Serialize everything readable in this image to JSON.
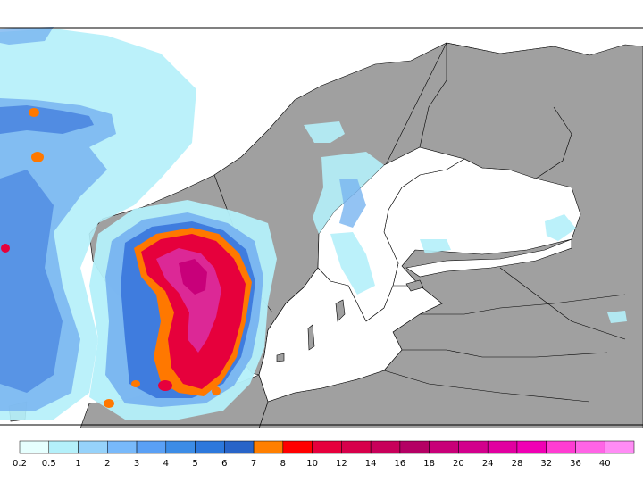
{
  "colors": {
    "land": "#a0a0a0",
    "sea": "#ffffff",
    "border": "#000000",
    "precip_light": "#b4f0fa",
    "precip_mid": "#78b4f0",
    "precip_blue": "#3c78dc",
    "precip_orange": "#ff7800",
    "precip_red": "#e6003c",
    "precip_magenta": "#dc2896"
  },
  "legend": {
    "colors": [
      "#e6fffe",
      "#b4f0fa",
      "#96d2fa",
      "#78b9fa",
      "#5aa0f5",
      "#3c8ce6",
      "#2d78dc",
      "#2864c8",
      "#ff7f00",
      "#ff0000",
      "#e6003c",
      "#d7004b",
      "#c8005a",
      "#b40064",
      "#c80078",
      "#d2008c",
      "#e100a0",
      "#f000b4",
      "#ff3cd2",
      "#ff64e6",
      "#ff8cf5"
    ],
    "labels": [
      "0.2",
      "0.5",
      "1",
      "2",
      "3",
      "4",
      "5",
      "6",
      "7",
      "8",
      "10",
      "12",
      "14",
      "16",
      "18",
      "20",
      "24",
      "28",
      "32",
      "36",
      "40"
    ]
  }
}
